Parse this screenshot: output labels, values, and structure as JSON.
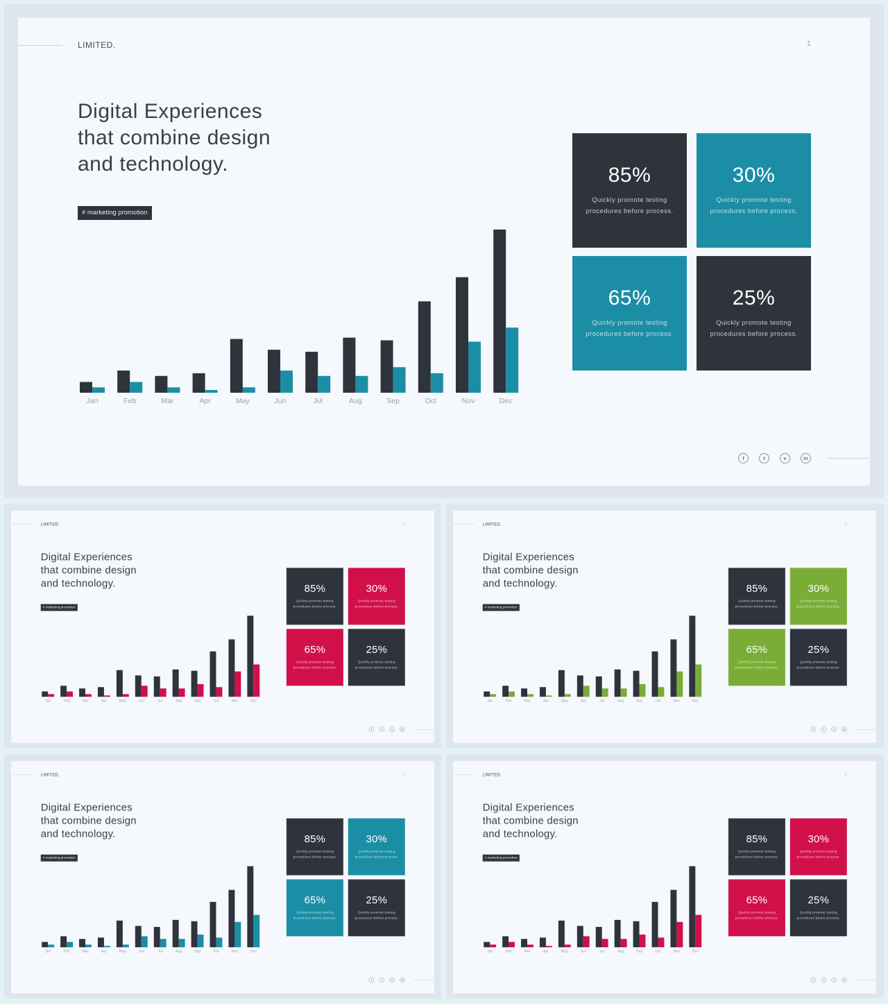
{
  "slide": {
    "brand": "LIMITED.",
    "page_number": "1",
    "headline": [
      "Digital Experiences",
      "that combine design",
      "and technology."
    ],
    "tag": "# marketing  promotion",
    "boxes": [
      {
        "value": "85%",
        "desc": [
          "Quickly  promote  testing",
          "procedures  before  process."
        ]
      },
      {
        "value": "30%",
        "desc": [
          "Quickly  promote  testing",
          "procedures  before  process."
        ]
      },
      {
        "value": "65%",
        "desc": [
          "Quickly  promote  testing",
          "procedures  before  process."
        ]
      },
      {
        "value": "25%",
        "desc": [
          "Quickly  promote  testing",
          "procedures  before  process."
        ]
      }
    ],
    "social": [
      {
        "icon": "facebook-icon",
        "glyph": "f"
      },
      {
        "icon": "twitter-icon",
        "glyph": "t"
      },
      {
        "icon": "vimeo-icon",
        "glyph": "v"
      },
      {
        "icon": "linkedin-icon",
        "glyph": "in"
      }
    ]
  },
  "variants": [
    {
      "name": "teal",
      "accent": "#1b8ea6",
      "dark": "#2f333b"
    },
    {
      "name": "crimson",
      "accent": "#d1104a",
      "dark": "#2f333b"
    },
    {
      "name": "green",
      "accent": "#7aad36",
      "dark": "#2f333b"
    },
    {
      "name": "teal",
      "accent": "#1b8ea6",
      "dark": "#2f333b"
    },
    {
      "name": "crimson",
      "accent": "#d1104a",
      "dark": "#2f333b"
    }
  ],
  "chart_data": {
    "type": "bar",
    "categories": [
      "Jan",
      "Feb",
      "Mar",
      "Apr",
      "May",
      "Jun",
      "Jul",
      "Aug",
      "Sep",
      "Oct",
      "Nov",
      "Dec"
    ],
    "series": [
      {
        "values": [
          16,
          33,
          25,
          29,
          80,
          64,
          61,
          82,
          78,
          136,
          172,
          243
        ]
      },
      {
        "values": [
          8,
          16,
          8,
          4,
          8,
          33,
          25,
          25,
          38,
          29,
          76,
          97
        ]
      }
    ],
    "ylim": [
      0,
      250
    ]
  }
}
